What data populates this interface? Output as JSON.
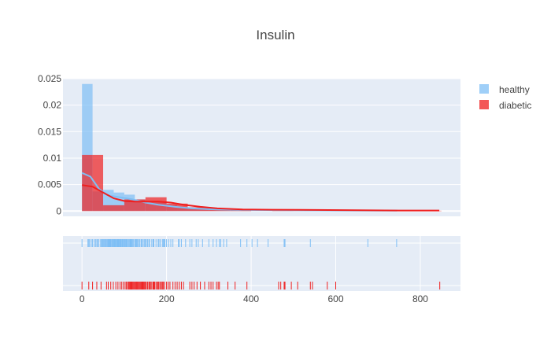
{
  "chart_data": {
    "type": "histogram",
    "title": "Insulin",
    "xlim": [
      -45,
      895
    ],
    "ylim": [
      -0.001,
      0.025
    ],
    "x_ticks": [
      0,
      200,
      400,
      600,
      800
    ],
    "y_ticks": [
      0,
      0.005,
      0.01,
      0.015,
      0.02,
      0.025
    ],
    "y_tick_labels": [
      "0",
      "0.005",
      "0.01",
      "0.015",
      "0.02",
      "0.025"
    ],
    "bin_width": 25,
    "legend": {
      "placement": "top-right"
    },
    "series": [
      {
        "name": "healthy",
        "color": "#7FBFF5",
        "bins": [
          {
            "x0": 0,
            "x1": 25,
            "density": 0.024
          },
          {
            "x0": 25,
            "x1": 50,
            "density": 0.0037
          },
          {
            "x0": 50,
            "x1": 75,
            "density": 0.004
          },
          {
            "x0": 75,
            "x1": 100,
            "density": 0.0035
          },
          {
            "x0": 100,
            "x1": 125,
            "density": 0.0031
          },
          {
            "x0": 125,
            "x1": 150,
            "density": 0.0022
          },
          {
            "x0": 150,
            "x1": 175,
            "density": 0.0018
          },
          {
            "x0": 175,
            "x1": 200,
            "density": 0.0017
          },
          {
            "x0": 200,
            "x1": 225,
            "density": 0.0012
          },
          {
            "x0": 225,
            "x1": 250,
            "density": 0.0008
          },
          {
            "x0": 250,
            "x1": 275,
            "density": 0.0004
          },
          {
            "x0": 275,
            "x1": 300,
            "density": 0.0004
          },
          {
            "x0": 300,
            "x1": 325,
            "density": 0.0003
          },
          {
            "x0": 325,
            "x1": 350,
            "density": 0.0003
          },
          {
            "x0": 350,
            "x1": 375,
            "density": 0.0002
          },
          {
            "x0": 375,
            "x1": 400,
            "density": 0.0002
          },
          {
            "x0": 400,
            "x1": 425,
            "density": 0.0002
          },
          {
            "x0": 425,
            "x1": 450,
            "density": 0.0001
          },
          {
            "x0": 450,
            "x1": 475,
            "density": 0.0001
          },
          {
            "x0": 475,
            "x1": 500,
            "density": 0.0001
          },
          {
            "x0": 525,
            "x1": 550,
            "density": 0.0001
          },
          {
            "x0": 675,
            "x1": 700,
            "density": 0.0001
          },
          {
            "x0": 725,
            "x1": 750,
            "density": 0.0001
          }
        ],
        "curve": [
          [
            0,
            0.0072
          ],
          [
            20,
            0.0065
          ],
          [
            40,
            0.0042
          ],
          [
            60,
            0.003
          ],
          [
            90,
            0.0026
          ],
          [
            120,
            0.0022
          ],
          [
            150,
            0.0016
          ],
          [
            180,
            0.0012
          ],
          [
            220,
            0.0008
          ],
          [
            260,
            0.0005
          ],
          [
            320,
            0.0003
          ],
          [
            400,
            0.0002
          ],
          [
            500,
            0.00015
          ],
          [
            600,
            0.0001
          ],
          [
            700,
            8e-05
          ],
          [
            745,
            8e-05
          ]
        ],
        "rug": [
          0,
          14,
          16,
          18,
          22,
          25,
          29,
          32,
          35,
          37,
          40,
          44,
          46,
          48,
          50,
          52,
          54,
          55,
          57,
          58,
          60,
          62,
          63,
          64,
          65,
          66,
          67,
          68,
          70,
          71,
          72,
          74,
          75,
          76,
          77,
          78,
          79,
          80,
          82,
          83,
          84,
          85,
          86,
          87,
          88,
          90,
          91,
          92,
          94,
          95,
          96,
          98,
          99,
          100,
          102,
          104,
          105,
          106,
          108,
          110,
          112,
          114,
          115,
          116,
          118,
          120,
          122,
          125,
          126,
          128,
          130,
          132,
          135,
          137,
          140,
          142,
          145,
          148,
          150,
          152,
          155,
          158,
          160,
          165,
          168,
          170,
          175,
          180,
          182,
          185,
          190,
          192,
          194,
          196,
          200,
          205,
          210,
          215,
          228,
          230,
          235,
          245,
          255,
          260,
          270,
          275,
          285,
          300,
          310,
          318,
          325,
          328,
          335,
          342,
          375,
          390,
          402,
          415,
          440,
          478,
          480,
          540,
          676,
          744
        ]
      },
      {
        "name": "diabetic",
        "color": "#EF1F1F",
        "bins": [
          {
            "x0": 0,
            "x1": 25,
            "density": 0.0106
          },
          {
            "x0": 25,
            "x1": 50,
            "density": 0.0106
          },
          {
            "x0": 50,
            "x1": 100,
            "density": 0.0011
          },
          {
            "x0": 100,
            "x1": 150,
            "density": 0.0022
          },
          {
            "x0": 150,
            "x1": 200,
            "density": 0.0026
          },
          {
            "x0": 200,
            "x1": 250,
            "density": 0.0014
          },
          {
            "x0": 250,
            "x1": 300,
            "density": 0.0007
          },
          {
            "x0": 300,
            "x1": 350,
            "density": 0.0005
          },
          {
            "x0": 350,
            "x1": 400,
            "density": 0.0002
          },
          {
            "x0": 450,
            "x1": 500,
            "density": 0.0001
          },
          {
            "x0": 500,
            "x1": 550,
            "density": 0.0001
          },
          {
            "x0": 550,
            "x1": 600,
            "density": 0.0001
          },
          {
            "x0": 600,
            "x1": 650,
            "density": 0.0001
          },
          {
            "x0": 750,
            "x1": 850,
            "density": 6e-05
          }
        ],
        "curve": [
          [
            0,
            0.0049
          ],
          [
            25,
            0.0046
          ],
          [
            50,
            0.0035
          ],
          [
            75,
            0.0024
          ],
          [
            100,
            0.0019
          ],
          [
            125,
            0.0018
          ],
          [
            150,
            0.0018
          ],
          [
            180,
            0.0018
          ],
          [
            210,
            0.0016
          ],
          [
            240,
            0.0012
          ],
          [
            280,
            0.0008
          ],
          [
            320,
            0.0005
          ],
          [
            380,
            0.0003
          ],
          [
            450,
            0.00025
          ],
          [
            550,
            0.0002
          ],
          [
            650,
            0.00015
          ],
          [
            750,
            0.0001
          ],
          [
            845,
            0.0001
          ]
        ],
        "rug": [
          0,
          16,
          25,
          35,
          45,
          58,
          62,
          68,
          74,
          80,
          85,
          90,
          94,
          98,
          102,
          105,
          108,
          110,
          112,
          114,
          116,
          118,
          120,
          122,
          124,
          126,
          128,
          130,
          132,
          134,
          136,
          138,
          140,
          142,
          144,
          146,
          148,
          150,
          152,
          155,
          158,
          160,
          162,
          165,
          168,
          170,
          172,
          175,
          178,
          180,
          182,
          185,
          188,
          190,
          192,
          195,
          200,
          204,
          208,
          215,
          220,
          225,
          230,
          235,
          240,
          255,
          260,
          265,
          272,
          280,
          290,
          300,
          305,
          310,
          318,
          322,
          325,
          345,
          362,
          390,
          465,
          470,
          478,
          480,
          495,
          510,
          540,
          545,
          580,
          600,
          846
        ]
      }
    ]
  }
}
